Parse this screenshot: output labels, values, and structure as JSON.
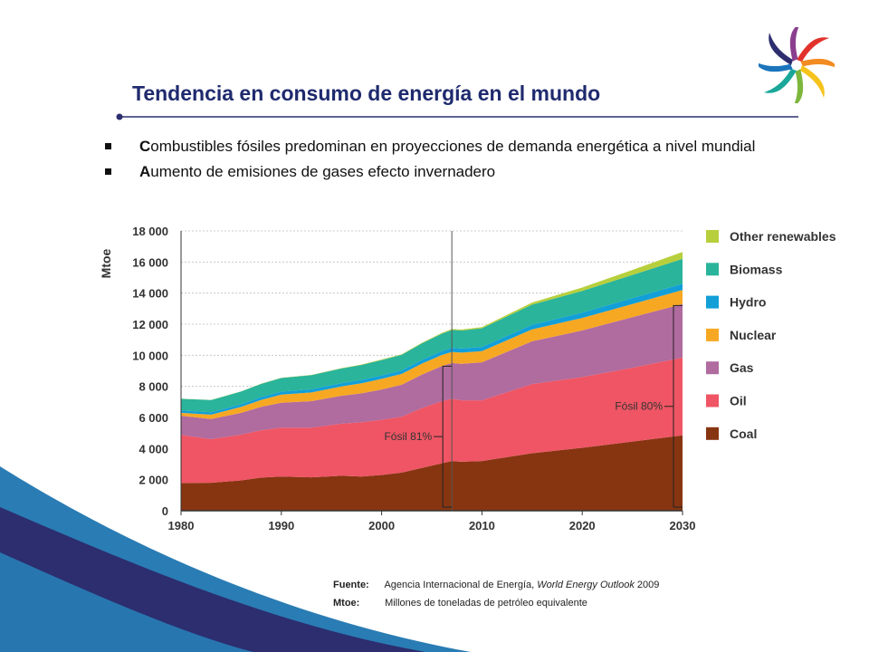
{
  "header": {
    "title": "Tendencia en consumo de energía en el mundo"
  },
  "bullets": [
    {
      "text": "Combustibles fósiles predominan en proyecciones de demanda energética a nivel mundial"
    },
    {
      "text": "Aumento de emisiones de gases efecto invernadero"
    }
  ],
  "notes": {
    "source_label": "Fuente:",
    "source_text_1": "Agencia Internacional de Energía,",
    "source_text_italic": "World Energy Outlook",
    "source_text_2": "2009",
    "mtoe_label": "Mtoe:",
    "mtoe_text": "Millones de toneladas de petróleo equivalente"
  },
  "colors": {
    "title": "#1f2a6e",
    "coal": "#873511",
    "oil": "#ef5564",
    "gas": "#b06b9f",
    "nuclear": "#f7a823",
    "hydro": "#129fd8",
    "biomass": "#2ab49b",
    "other_renewables": "#b7cf3c",
    "background_wave_dark": "#2c2e6f",
    "background_wave_light": "#2a7cb4"
  },
  "chart_data": {
    "type": "area",
    "ylabel": "Mtoe",
    "xlabel": "",
    "ylim": [
      0,
      18000
    ],
    "yticks": [
      0,
      2000,
      4000,
      6000,
      8000,
      10000,
      12000,
      14000,
      16000,
      18000
    ],
    "ytick_labels": [
      "0",
      "2 000",
      "4 000",
      "6 000",
      "8 000",
      "10 000",
      "12 000",
      "14 000",
      "16 000",
      "18 000"
    ],
    "xlim": [
      1980,
      2030
    ],
    "xticks": [
      1980,
      1990,
      2000,
      2010,
      2020,
      2030
    ],
    "xtick_labels": [
      "1980",
      "1990",
      "2000",
      "2010",
      "2020",
      "2030"
    ],
    "grid": true,
    "legend_position": "right",
    "stacked": true,
    "projection_start": 2007,
    "x": [
      1980,
      1983,
      1986,
      1988,
      1990,
      1993,
      1996,
      1998,
      2000,
      2002,
      2004,
      2006,
      2007,
      2008,
      2010,
      2015,
      2020,
      2025,
      2030
    ],
    "series": [
      {
        "name": "Coal",
        "color": "#873511",
        "values": [
          1780,
          1800,
          1950,
          2130,
          2200,
          2150,
          2250,
          2200,
          2300,
          2450,
          2750,
          3050,
          3200,
          3150,
          3200,
          3700,
          4050,
          4450,
          4850
        ]
      },
      {
        "name": "Oil",
        "color": "#ef5564",
        "values": [
          3100,
          2800,
          2950,
          3050,
          3150,
          3200,
          3350,
          3500,
          3550,
          3600,
          3850,
          4000,
          4000,
          3950,
          3900,
          4450,
          4550,
          4750,
          5000
        ]
      },
      {
        "name": "Gas",
        "color": "#b06b9f",
        "values": [
          1230,
          1300,
          1400,
          1500,
          1600,
          1700,
          1800,
          1850,
          1950,
          2050,
          2150,
          2250,
          2300,
          2350,
          2450,
          2750,
          3000,
          3250,
          3450
        ]
      },
      {
        "name": "Nuclear",
        "color": "#f7a823",
        "values": [
          190,
          280,
          380,
          450,
          520,
          560,
          600,
          650,
          680,
          700,
          710,
          720,
          720,
          720,
          720,
          760,
          800,
          850,
          900
        ]
      },
      {
        "name": "Hydro",
        "color": "#129fd8",
        "values": [
          150,
          160,
          170,
          180,
          190,
          200,
          210,
          220,
          225,
          230,
          240,
          250,
          260,
          265,
          270,
          300,
          340,
          370,
          400
        ]
      },
      {
        "name": "Biomass",
        "color": "#2ab49b",
        "values": [
          750,
          780,
          820,
          850,
          880,
          910,
          940,
          960,
          990,
          1000,
          1060,
          1120,
          1150,
          1160,
          1200,
          1300,
          1400,
          1500,
          1600
        ]
      },
      {
        "name": "Other renewables",
        "color": "#b7cf3c",
        "values": [
          10,
          12,
          14,
          16,
          18,
          20,
          24,
          28,
          32,
          36,
          42,
          50,
          55,
          60,
          70,
          130,
          220,
          320,
          450
        ]
      }
    ],
    "annotations": [
      {
        "text": "Fósil 81%",
        "year": 2007,
        "bracket": [
          0,
          9300
        ]
      },
      {
        "text": "Fósil 80%",
        "year": 2030,
        "bracket": [
          0,
          13200
        ]
      }
    ]
  }
}
